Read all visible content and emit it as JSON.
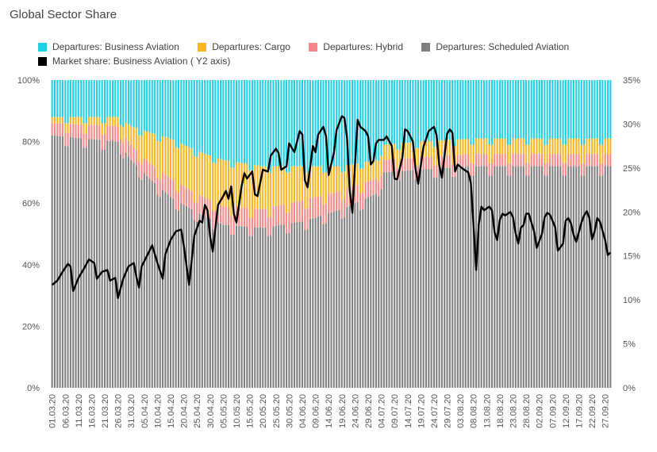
{
  "chart_title": "Global Sector Share",
  "chart_data": {
    "type": "bar",
    "stacked": true,
    "percent_stacked": true,
    "series": [
      {
        "name": "Departures: Business Aviation",
        "color": "#21cfe2"
      },
      {
        "name": "Departures: Cargo",
        "color": "#f9b520"
      },
      {
        "name": "Departures: Hybrid",
        "color": "#f78686"
      },
      {
        "name": "Departures: Scheduled Aviation",
        "color": "#7f7f7f"
      },
      {
        "name": "Market share: Business Aviation ( Y2 axis)",
        "color": "#000000",
        "type": "line",
        "axis": "y2"
      }
    ],
    "x_tick_labels": [
      "01.03.20",
      "06.03.20",
      "11.03.20",
      "16.03.20",
      "21.03.20",
      "26.03.20",
      "31.03.20",
      "05.04.20",
      "10.04.20",
      "15.04.20",
      "20.04.20",
      "25.04.20",
      "30.04.20",
      "05.05.20",
      "10.05.20",
      "15.05.20",
      "20.05.20",
      "25.05.20",
      "30.05.20",
      "04.06.20",
      "09.06.20",
      "14.06.20",
      "19.06.20",
      "24.06.20",
      "29.06.20",
      "04.07.20",
      "09.07.20",
      "14.07.20",
      "19.07.20",
      "24.07.20",
      "29.07.20",
      "03.08.20",
      "08.08.20",
      "13.08.20",
      "18.08.20",
      "23.08.20",
      "28.08.20",
      "02.09.20",
      "07.09.20",
      "12.09.20",
      "17.09.20",
      "22.09.20",
      "27.09.20"
    ],
    "y_tick_labels": [
      "0%",
      "20%",
      "40%",
      "60%",
      "80%",
      "100%"
    ],
    "y2_tick_labels": [
      "0%",
      "5%",
      "10%",
      "15%",
      "20%",
      "25%",
      "30%",
      "35%"
    ],
    "ylim": [
      0,
      100
    ],
    "y2lim": [
      0,
      35
    ],
    "days": 212,
    "stack_keypoints": [
      {
        "day": 0,
        "scheduled": 82,
        "hybrid": 4,
        "cargo": 2
      },
      {
        "day": 25,
        "scheduled": 80,
        "hybrid": 5,
        "cargo": 3
      },
      {
        "day": 30,
        "scheduled": 74,
        "hybrid": 5,
        "cargo": 6
      },
      {
        "day": 37,
        "scheduled": 68,
        "hybrid": 5,
        "cargo": 10
      },
      {
        "day": 45,
        "scheduled": 62,
        "hybrid": 6,
        "cargo": 13
      },
      {
        "day": 55,
        "scheduled": 57,
        "hybrid": 6,
        "cargo": 14
      },
      {
        "day": 65,
        "scheduled": 53,
        "hybrid": 6,
        "cargo": 15
      },
      {
        "day": 80,
        "scheduled": 52,
        "hybrid": 6,
        "cargo": 14
      },
      {
        "day": 95,
        "scheduled": 54,
        "hybrid": 7,
        "cargo": 11
      },
      {
        "day": 110,
        "scheduled": 58,
        "hybrid": 6,
        "cargo": 8
      },
      {
        "day": 123,
        "scheduled": 63,
        "hybrid": 5,
        "cargo": 6
      },
      {
        "day": 126,
        "scheduled": 70,
        "hybrid": 4,
        "cargo": 5
      },
      {
        "day": 140,
        "scheduled": 71,
        "hybrid": 4,
        "cargo": 5
      },
      {
        "day": 160,
        "scheduled": 72,
        "hybrid": 4,
        "cargo": 5
      },
      {
        "day": 212,
        "scheduled": 72,
        "hybrid": 4,
        "cargo": 5
      }
    ],
    "market_share_points": [
      [
        0,
        11.7
      ],
      [
        2,
        12.2
      ],
      [
        4,
        13.2
      ],
      [
        6,
        14.1
      ],
      [
        7,
        13.8
      ],
      [
        8,
        11
      ],
      [
        10,
        12.5
      ],
      [
        12,
        13.5
      ],
      [
        14,
        14.6
      ],
      [
        16,
        14.2
      ],
      [
        17,
        12.4
      ],
      [
        19,
        13.2
      ],
      [
        21,
        13.4
      ],
      [
        22,
        12.2
      ],
      [
        24,
        12.5
      ],
      [
        25,
        10.2
      ],
      [
        27,
        12.4
      ],
      [
        29,
        13.8
      ],
      [
        31,
        14.2
      ],
      [
        32,
        12.6
      ],
      [
        33,
        11.4
      ],
      [
        34,
        13.8
      ],
      [
        36,
        15
      ],
      [
        38,
        16.2
      ],
      [
        40,
        14.2
      ],
      [
        42,
        12.4
      ],
      [
        43,
        15.2
      ],
      [
        45,
        16.8
      ],
      [
        47,
        17.8
      ],
      [
        49,
        18
      ],
      [
        50,
        16.2
      ],
      [
        52,
        11.7
      ],
      [
        54,
        17.3
      ],
      [
        56,
        19
      ],
      [
        57,
        18.8
      ],
      [
        58,
        20.8
      ],
      [
        59,
        20.2
      ],
      [
        60,
        17.2
      ],
      [
        61,
        15.5
      ],
      [
        63,
        20.8
      ],
      [
        65,
        21.8
      ],
      [
        66,
        22.4
      ],
      [
        67,
        21.5
      ],
      [
        68,
        22.9
      ],
      [
        69,
        19.8
      ],
      [
        70,
        18.8
      ],
      [
        72,
        23
      ],
      [
        73,
        24.4
      ],
      [
        74,
        23.8
      ],
      [
        76,
        24.6
      ],
      [
        77,
        22
      ],
      [
        78,
        21.8
      ],
      [
        80,
        24.8
      ],
      [
        82,
        24.6
      ],
      [
        83,
        26.4
      ],
      [
        85,
        27.2
      ],
      [
        86,
        26.7
      ],
      [
        87,
        24.8
      ],
      [
        89,
        25.2
      ],
      [
        90,
        27.8
      ],
      [
        92,
        26.8
      ],
      [
        94,
        29.2
      ],
      [
        95,
        28.8
      ],
      [
        96,
        23.6
      ],
      [
        97,
        22.8
      ],
      [
        99,
        27.5
      ],
      [
        100,
        26.8
      ],
      [
        101,
        28.8
      ],
      [
        103,
        29.7
      ],
      [
        104,
        28.6
      ],
      [
        105,
        24.2
      ],
      [
        107,
        26.7
      ],
      [
        108,
        29.3
      ],
      [
        110,
        30.9
      ],
      [
        111,
        30.7
      ],
      [
        112,
        28.4
      ],
      [
        113,
        22.5
      ],
      [
        114,
        19.9
      ],
      [
        115,
        25.4
      ],
      [
        116,
        30.5
      ],
      [
        117,
        29.7
      ],
      [
        119,
        29.2
      ],
      [
        120,
        28.6
      ],
      [
        121,
        25.4
      ],
      [
        122,
        25.8
      ],
      [
        123,
        27.8
      ],
      [
        124,
        28.2
      ],
      [
        126,
        28.2
      ],
      [
        127,
        28.6
      ],
      [
        129,
        27.5
      ],
      [
        130,
        23.8
      ],
      [
        131,
        23.7
      ],
      [
        133,
        26.2
      ],
      [
        134,
        29.4
      ],
      [
        135,
        29.2
      ],
      [
        137,
        28
      ],
      [
        138,
        24.9
      ],
      [
        139,
        23.2
      ],
      [
        141,
        27.4
      ],
      [
        142,
        28.3
      ],
      [
        143,
        29.2
      ],
      [
        145,
        29.7
      ],
      [
        146,
        28.7
      ],
      [
        147,
        25.3
      ],
      [
        148,
        23.9
      ],
      [
        150,
        28.9
      ],
      [
        151,
        29.4
      ],
      [
        152,
        29
      ],
      [
        153,
        24.6
      ],
      [
        154,
        25.4
      ],
      [
        156,
        24.9
      ],
      [
        158,
        24.5
      ],
      [
        159,
        23.3
      ],
      [
        160,
        18.6
      ],
      [
        161,
        13.4
      ],
      [
        162,
        18.6
      ],
      [
        163,
        20.6
      ],
      [
        164,
        20.2
      ],
      [
        166,
        20.6
      ],
      [
        167,
        20.2
      ],
      [
        168,
        17.7
      ],
      [
        169,
        16.8
      ],
      [
        170,
        19.1
      ],
      [
        171,
        19.8
      ],
      [
        172,
        19.6
      ],
      [
        174,
        20
      ],
      [
        175,
        19.4
      ],
      [
        176,
        17.6
      ],
      [
        177,
        16.4
      ],
      [
        178,
        18.2
      ],
      [
        179,
        18.5
      ],
      [
        180,
        19.8
      ],
      [
        181,
        19.8
      ],
      [
        183,
        17.8
      ],
      [
        184,
        15.9
      ],
      [
        186,
        17.5
      ],
      [
        187,
        19.4
      ],
      [
        188,
        19.9
      ],
      [
        189,
        19.7
      ],
      [
        191,
        18.3
      ],
      [
        192,
        15.6
      ],
      [
        194,
        16.4
      ],
      [
        195,
        19
      ],
      [
        196,
        19.3
      ],
      [
        197,
        18.7
      ],
      [
        198,
        17.4
      ],
      [
        199,
        16.6
      ],
      [
        201,
        18.8
      ],
      [
        202,
        19.6
      ],
      [
        203,
        20.1
      ],
      [
        204,
        19.3
      ],
      [
        205,
        16.9
      ],
      [
        206,
        17.8
      ],
      [
        207,
        19.3
      ],
      [
        208,
        18.9
      ],
      [
        210,
        16.8
      ],
      [
        211,
        15.1
      ],
      [
        212,
        15.4
      ]
    ]
  }
}
